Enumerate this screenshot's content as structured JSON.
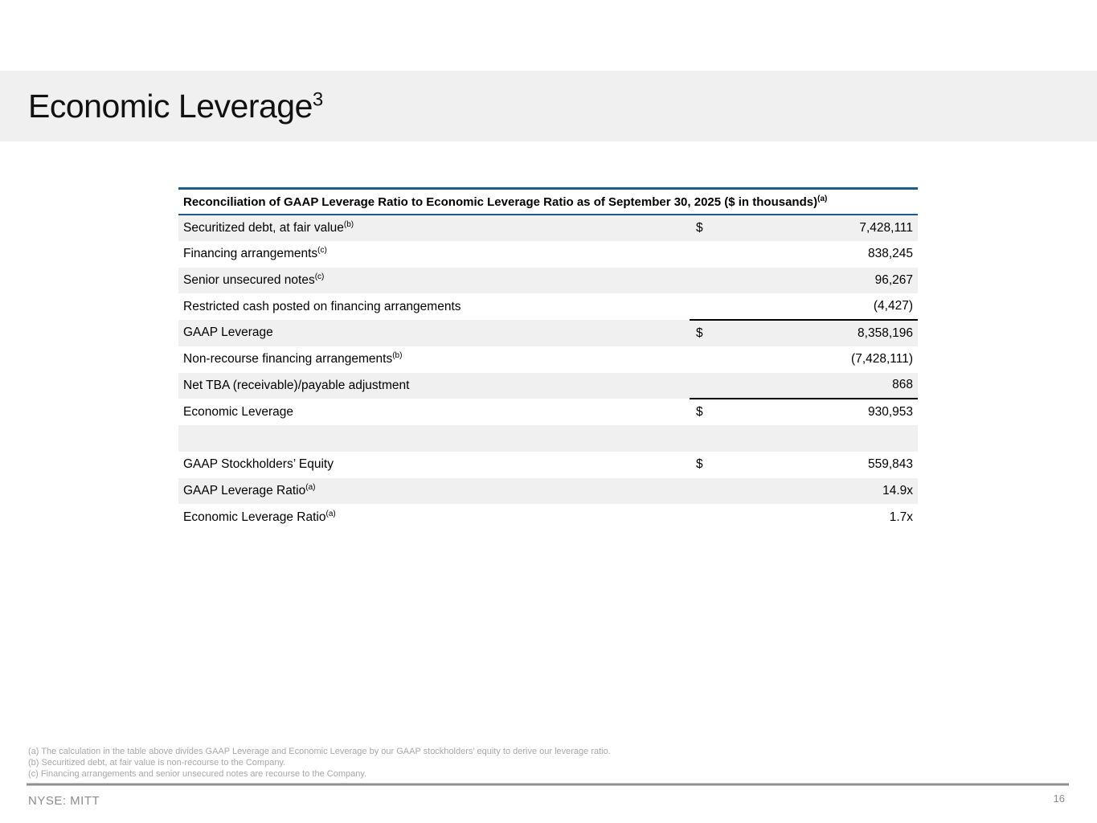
{
  "slide": {
    "title": {
      "text": "Economic Leverage",
      "sup": "3"
    }
  },
  "table": {
    "header": {
      "text": "Reconciliation of GAAP Leverage Ratio to Economic Leverage Ratio as of September 30, 2025 ($ in thousands)",
      "sup": "(a)"
    },
    "rows": [
      {
        "label": "Securitized debt, at fair value",
        "sup": "(b)",
        "dollar": "$",
        "value": "7,428,111",
        "shaded": true,
        "rule_below": false
      },
      {
        "label": "Financing arrangements",
        "sup": "(c)",
        "dollar": "",
        "value": "838,245",
        "shaded": false,
        "rule_below": false
      },
      {
        "label": "Senior unsecured notes",
        "sup": "(c)",
        "dollar": "",
        "value": "96,267",
        "shaded": true,
        "rule_below": false
      },
      {
        "label": "Restricted cash posted on financing arrangements",
        "sup": "",
        "dollar": "",
        "value": "(4,427)",
        "shaded": false,
        "rule_below": true
      },
      {
        "label": "GAAP Leverage",
        "sup": "",
        "dollar": "$",
        "value": "8,358,196",
        "shaded": true,
        "rule_below": false
      },
      {
        "label": "Non-recourse financing arrangements",
        "sup": "(b)",
        "dollar": "",
        "value": "(7,428,111)",
        "shaded": false,
        "rule_below": false
      },
      {
        "label": "Net TBA (receivable)/payable adjustment",
        "sup": "",
        "dollar": "",
        "value": "868",
        "shaded": true,
        "rule_below": true
      },
      {
        "label": "Economic Leverage",
        "sup": "",
        "dollar": "$",
        "value": "930,953",
        "shaded": false,
        "rule_below": false
      },
      {
        "label": "",
        "sup": "",
        "dollar": "",
        "value": "",
        "shaded": true,
        "rule_below": false
      },
      {
        "label": "GAAP Stockholders’ Equity",
        "sup": "",
        "dollar": "$",
        "value": "559,843",
        "shaded": false,
        "rule_below": false
      },
      {
        "label": "GAAP Leverage Ratio",
        "sup": "(a)",
        "dollar": "",
        "value": "14.9x",
        "shaded": true,
        "rule_below": false
      },
      {
        "label": "Economic Leverage Ratio",
        "sup": "(a)",
        "dollar": "",
        "value": "1.7x",
        "shaded": false,
        "rule_below": false
      }
    ]
  },
  "footnotes": [
    "(a) The calculation in the table above divides GAAP Leverage and Economic Leverage by our GAAP stockholders’ equity to derive our leverage ratio.",
    "(b) Securitized debt, at fair value is non-recourse to the Company.",
    "(c) Financing arrangements and senior unsecured notes are recourse to the Company."
  ],
  "footer": {
    "ticker": "NYSE: MITT",
    "page_number": "16"
  },
  "colors": {
    "banner_bg": "#f0f0f0",
    "row_stripe_bg": "#f0f0f0",
    "table_header_border": "#1e5c85",
    "subtotal_rule": "#000000",
    "footnote_text": "#a8a8a8",
    "footer_text": "#8c8c8c"
  }
}
